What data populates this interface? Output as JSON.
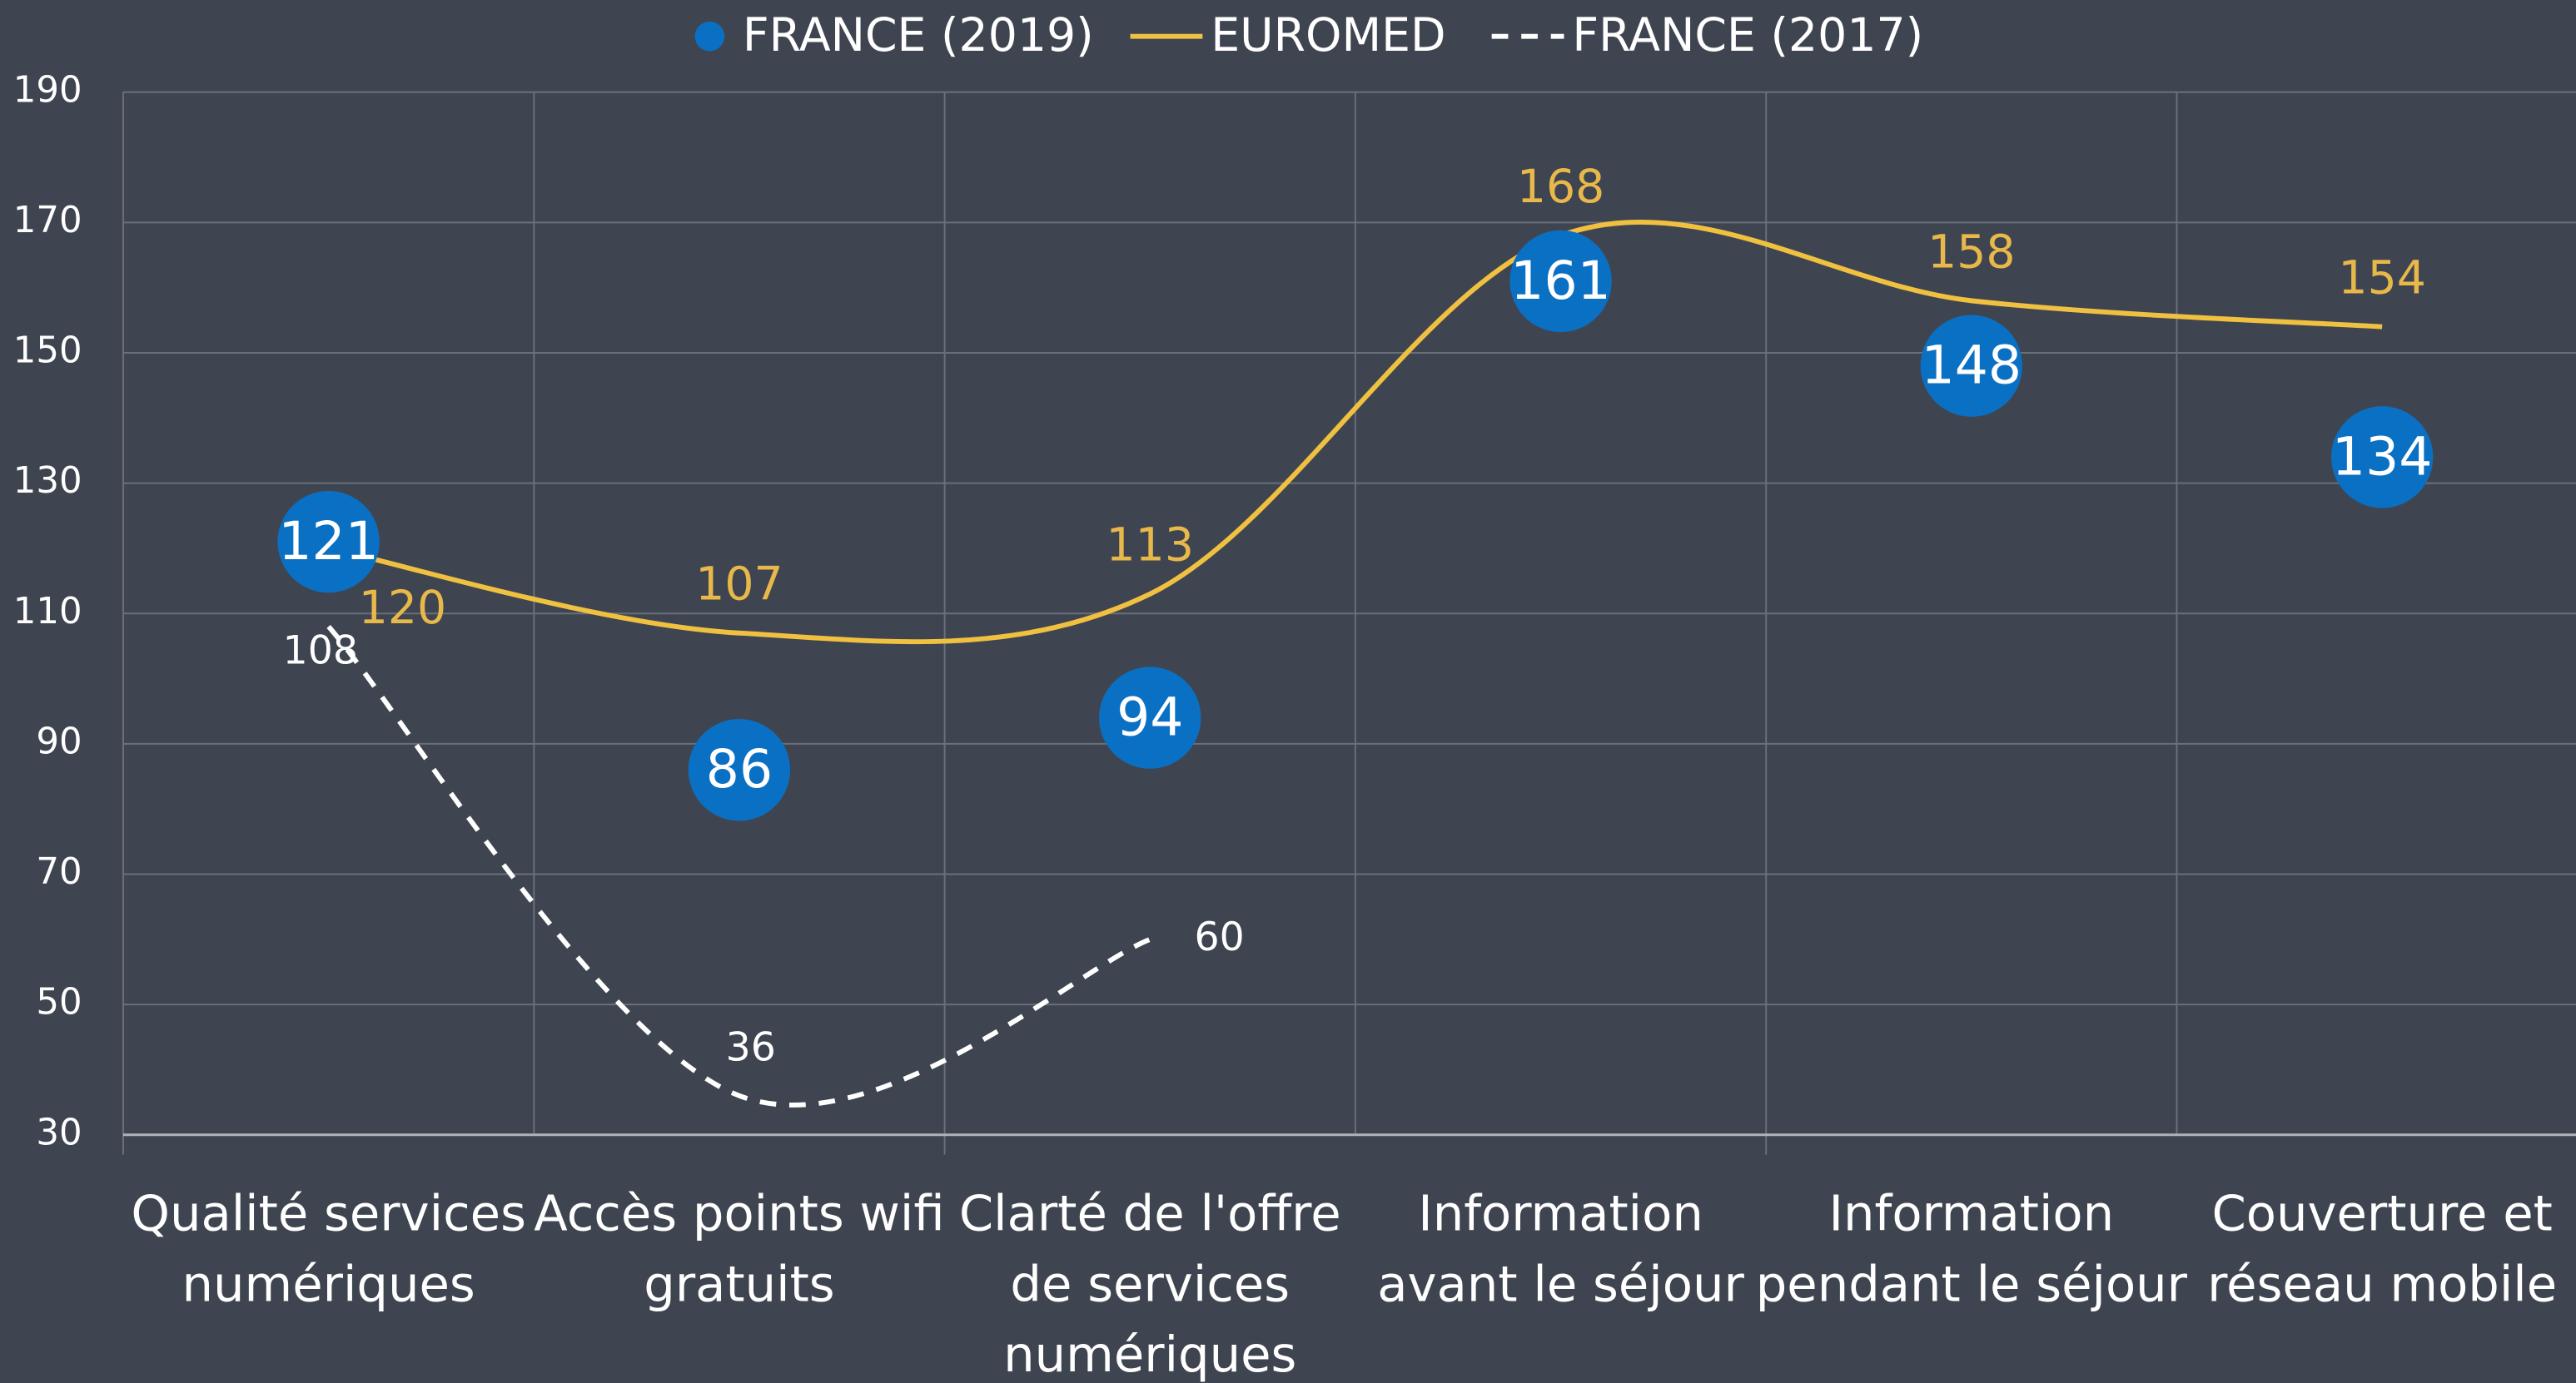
{
  "chart_data": {
    "type": "line",
    "categories": [
      [
        "Qualité services",
        "numériques"
      ],
      [
        "Accès points wifi",
        "gratuits"
      ],
      [
        "Clarté de l'offre",
        "de services",
        "numériques"
      ],
      [
        "Information",
        "avant le séjour"
      ],
      [
        "Information",
        "pendant le séjour"
      ],
      [
        "Couverture et",
        "réseau mobile"
      ]
    ],
    "series": [
      {
        "name": "FRANCE (2019)",
        "color": "#0a70c4",
        "style": "dots",
        "values": [
          121,
          86,
          94,
          161,
          148,
          134
        ]
      },
      {
        "name": "EUROMED",
        "color": "#f0c040",
        "style": "solid",
        "values": [
          120,
          107,
          113,
          168,
          158,
          154
        ]
      },
      {
        "name": "FRANCE (2017)",
        "color": "#ffffff",
        "style": "dashed",
        "values": [
          108,
          36,
          60,
          null,
          null,
          null
        ]
      }
    ],
    "ylim": [
      30,
      190
    ],
    "yticks": [
      30,
      50,
      70,
      90,
      110,
      130,
      150,
      170,
      190
    ],
    "grid": true
  }
}
